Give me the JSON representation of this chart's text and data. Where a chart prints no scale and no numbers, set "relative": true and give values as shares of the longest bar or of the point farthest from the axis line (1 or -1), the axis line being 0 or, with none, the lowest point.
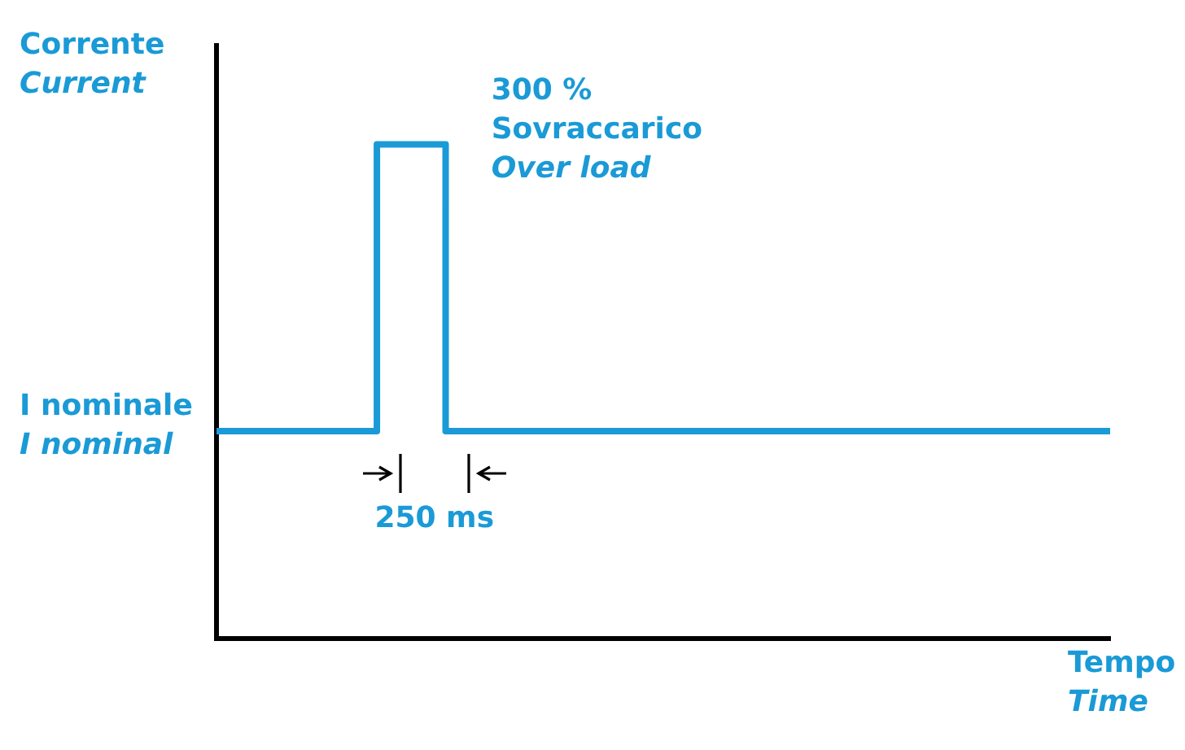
{
  "chart_data": {
    "type": "step",
    "relative": true,
    "ylabel": "Corrente\nCurrent",
    "xlabel": "Tempo\nTime",
    "categories": [
      null,
      null,
      null,
      null,
      null,
      null,
      null,
      null,
      null,
      null,
      null,
      null,
      null,
      null,
      null,
      null,
      null,
      null,
      null,
      null,
      null,
      null,
      null,
      null,
      null,
      null,
      null,
      null,
      null,
      null,
      null,
      null,
      null,
      null,
      null,
      null,
      null,
      null,
      null,
      null
    ],
    "series": [
      {
        "color": "#1a9ad6",
        "values": [
          0.42,
          0.42,
          0.42,
          0.42,
          0.42,
          0.42,
          0.42,
          0.42,
          1,
          1,
          1,
          0.42,
          0.42,
          0.42,
          0.42,
          0.42,
          0.42,
          0.42,
          0.42,
          0.42,
          0.42,
          0.42,
          0.42,
          0.42,
          0.42,
          0.42,
          0.42,
          0.42,
          0.42,
          0.42,
          0.42,
          0.42,
          0.42,
          0.42,
          0.42,
          0.42,
          0.42,
          0.42,
          0.42,
          0.42
        ]
      }
    ],
    "annotations": [
      "I nominale\nI nominal",
      "300 %\nSovraccarico\nOver load",
      "250 ms"
    ],
    "grid": false,
    "legend": false,
    "marker": "none",
    "line_style": "solid"
  }
}
